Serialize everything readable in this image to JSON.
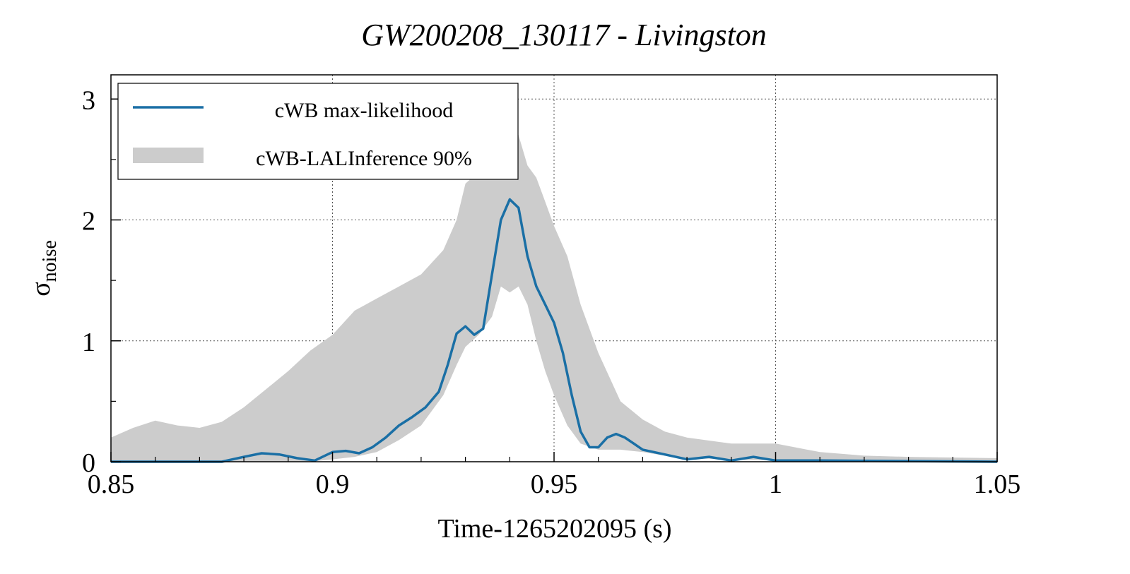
{
  "chart_data": {
    "type": "line",
    "title": "GW200208_130117 - Livingston",
    "xlabel": "Time-1265202095 (s)",
    "ylabel_main": "σ",
    "ylabel_sub": "noise",
    "xlim": [
      0.85,
      1.05
    ],
    "ylim": [
      0,
      3.2
    ],
    "xticks": [
      0.85,
      0.9,
      0.95,
      1.0,
      1.05
    ],
    "xtick_labels": [
      "0.85",
      "0.9",
      "0.95",
      "1",
      "1.05"
    ],
    "yticks": [
      0,
      1,
      2,
      3
    ],
    "ytick_labels": [
      "0",
      "1",
      "2",
      "3"
    ],
    "grid": true,
    "legend_position": "top-left",
    "series": [
      {
        "name": "cWB max-likelihood",
        "kind": "line",
        "color": "#1a6fa5",
        "x": [
          0.85,
          0.865,
          0.875,
          0.88,
          0.884,
          0.888,
          0.892,
          0.896,
          0.9,
          0.903,
          0.906,
          0.909,
          0.912,
          0.915,
          0.918,
          0.921,
          0.924,
          0.926,
          0.928,
          0.93,
          0.932,
          0.934,
          0.936,
          0.938,
          0.94,
          0.942,
          0.944,
          0.946,
          0.948,
          0.95,
          0.952,
          0.954,
          0.956,
          0.958,
          0.96,
          0.962,
          0.964,
          0.966,
          0.968,
          0.97,
          0.975,
          0.98,
          0.985,
          0.99,
          0.995,
          1.0,
          1.01,
          1.05
        ],
        "y": [
          0.0,
          0.0,
          0.0,
          0.04,
          0.07,
          0.06,
          0.03,
          0.01,
          0.08,
          0.09,
          0.07,
          0.12,
          0.2,
          0.3,
          0.37,
          0.45,
          0.58,
          0.8,
          1.06,
          1.12,
          1.05,
          1.1,
          1.55,
          2.0,
          2.17,
          2.1,
          1.7,
          1.45,
          1.3,
          1.15,
          0.9,
          0.55,
          0.25,
          0.12,
          0.12,
          0.2,
          0.23,
          0.2,
          0.15,
          0.1,
          0.06,
          0.02,
          0.04,
          0.01,
          0.04,
          0.01,
          0.01,
          0.0
        ]
      },
      {
        "name": "cWB-LALInference 90%",
        "kind": "band",
        "color": "#cccccc",
        "x": [
          0.85,
          0.855,
          0.86,
          0.865,
          0.87,
          0.875,
          0.88,
          0.885,
          0.89,
          0.895,
          0.9,
          0.905,
          0.91,
          0.915,
          0.92,
          0.925,
          0.928,
          0.93,
          0.933,
          0.936,
          0.938,
          0.94,
          0.942,
          0.944,
          0.946,
          0.948,
          0.95,
          0.953,
          0.956,
          0.96,
          0.965,
          0.97,
          0.975,
          0.98,
          0.99,
          1.0,
          1.01,
          1.02,
          1.03,
          1.05
        ],
        "lower": [
          0.0,
          0.0,
          0.0,
          0.0,
          0.0,
          0.0,
          0.0,
          0.0,
          0.0,
          0.0,
          0.02,
          0.04,
          0.08,
          0.18,
          0.3,
          0.55,
          0.8,
          0.95,
          1.05,
          1.2,
          1.45,
          1.4,
          1.45,
          1.3,
          1.0,
          0.75,
          0.55,
          0.3,
          0.15,
          0.1,
          0.1,
          0.08,
          0.05,
          0.03,
          0.02,
          0.01,
          0.0,
          0.0,
          0.0,
          0.0
        ],
        "upper": [
          0.2,
          0.28,
          0.34,
          0.3,
          0.28,
          0.33,
          0.45,
          0.6,
          0.75,
          0.92,
          1.05,
          1.25,
          1.35,
          1.45,
          1.55,
          1.75,
          2.0,
          2.3,
          2.4,
          2.5,
          2.8,
          3.0,
          2.7,
          2.45,
          2.35,
          2.15,
          1.95,
          1.7,
          1.3,
          0.9,
          0.5,
          0.35,
          0.25,
          0.2,
          0.15,
          0.15,
          0.08,
          0.05,
          0.04,
          0.03
        ]
      }
    ]
  }
}
